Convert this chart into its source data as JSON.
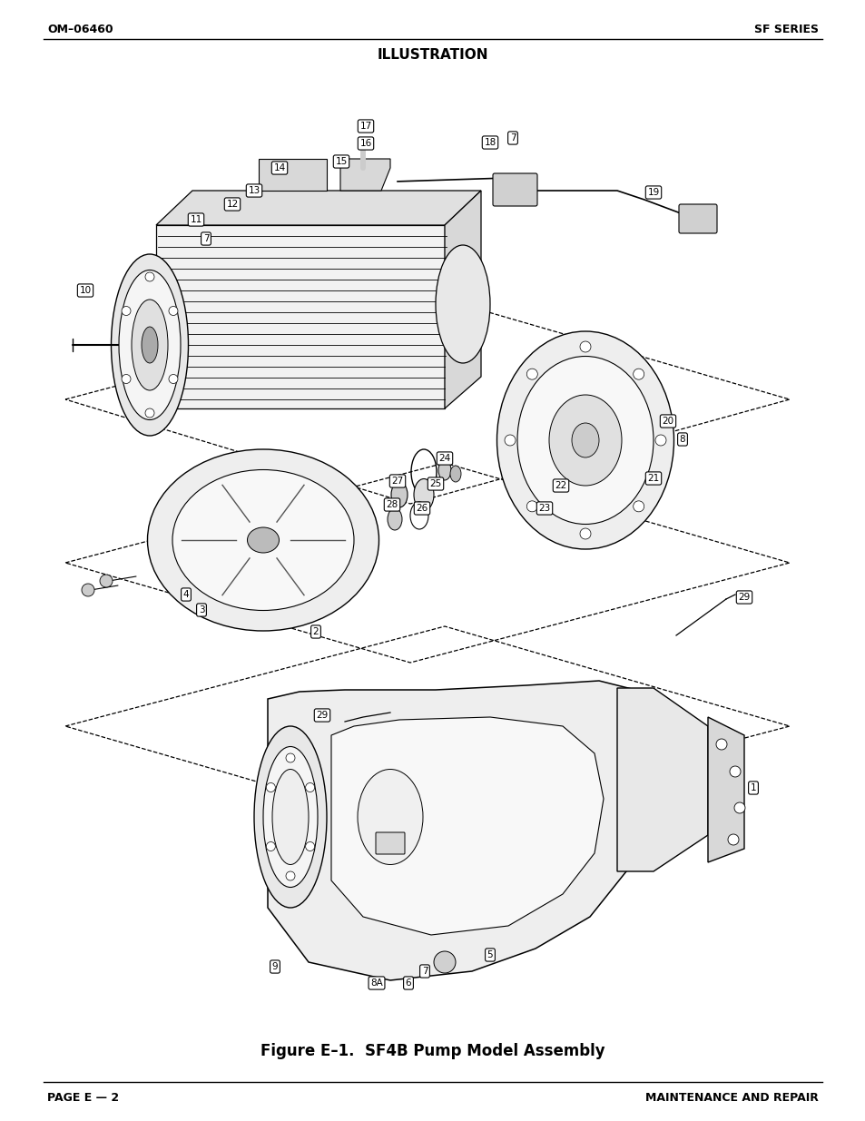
{
  "bg_color": "#ffffff",
  "header_left": "OM–06460",
  "header_right": "SF SERIES",
  "section_title": "ILLUSTRATION",
  "figure_caption": "Figure E–1.  SF4B Pump Model Assembly",
  "footer_left": "PAGE E — 2",
  "footer_right": "MAINTENANCE AND REPAIR"
}
